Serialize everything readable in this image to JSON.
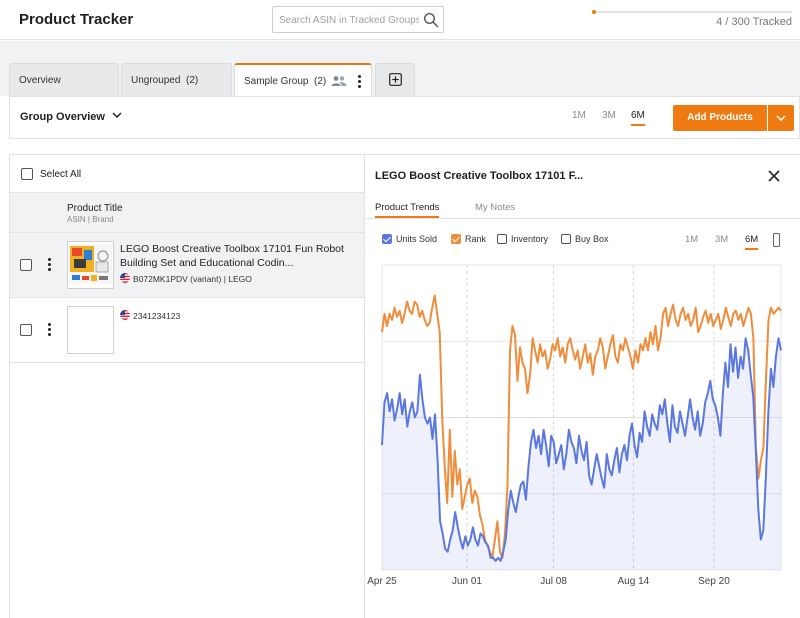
{
  "app": {
    "title": "Product Tracker"
  },
  "search": {
    "placeholder": "Search ASIN in Tracked Groups"
  },
  "quota": {
    "text": "4 / 300 Tracked",
    "used": 4,
    "limit": 300,
    "color": "#f07a12"
  },
  "tabs": [
    {
      "label": "Overview"
    },
    {
      "label": "Ungrouped  (2)"
    },
    {
      "label": "Sample Group  (2)"
    }
  ],
  "tab_icons": {
    "group_users": "users-icon",
    "more": "kebab-icon",
    "add": "plus-box-icon"
  },
  "overview": {
    "title": "Group Overview",
    "ranges": [
      "1M",
      "3M",
      "6M"
    ],
    "active_range": "6M",
    "add_button": "Add Products"
  },
  "list": {
    "select_all": "Select All",
    "header_title": "Product Title",
    "header_sub": "ASIN | Brand",
    "rows": [
      {
        "title": "LEGO Boost Creative Toolbox 17101 Fun Robot Building Set and Educational Codin...",
        "meta": "B072MK1PDV (variant) | LEGO",
        "has_image": true
      },
      {
        "title": "",
        "meta": "2341234123",
        "has_image": false
      }
    ]
  },
  "detail": {
    "title": "LEGO Boost Creative Toolbox 17101 F...",
    "tabs": [
      "Product Trends",
      "My Notes"
    ],
    "active_tab": "Product Trends",
    "legend": [
      {
        "label": "Units Sold",
        "checked": true,
        "color": "#5b78e0"
      },
      {
        "label": "Rank",
        "checked": true,
        "color": "#f08d3c"
      },
      {
        "label": "Inventory",
        "checked": false,
        "color": "#555555"
      },
      {
        "label": "Buy Box",
        "checked": false,
        "color": "#555555"
      }
    ],
    "ranges": [
      "1M",
      "3M",
      "6M"
    ],
    "active_range": "6M"
  },
  "chart_data": {
    "type": "line",
    "x_ticks": [
      "Apr 25",
      "Jun 01",
      "Jul 08",
      "Aug 14",
      "Sep 20"
    ],
    "grid": true,
    "series": [
      {
        "name": "Units Sold",
        "color": "#5b78e0",
        "fill": true,
        "values": [
          0.41,
          0.55,
          0.58,
          0.52,
          0.56,
          0.49,
          0.53,
          0.58,
          0.51,
          0.56,
          0.47,
          0.52,
          0.55,
          0.5,
          0.52,
          0.64,
          0.56,
          0.5,
          0.48,
          0.5,
          0.43,
          0.51,
          0.36,
          0.16,
          0.12,
          0.07,
          0.06,
          0.1,
          0.13,
          0.19,
          0.14,
          0.1,
          0.07,
          0.11,
          0.08,
          0.1,
          0.14,
          0.1,
          0.08,
          0.12,
          0.11,
          0.09,
          0.08,
          0.04,
          0.04,
          0.03,
          0.04,
          0.03,
          0.06,
          0.1,
          0.2,
          0.26,
          0.22,
          0.19,
          0.24,
          0.28,
          0.29,
          0.23,
          0.34,
          0.42,
          0.46,
          0.4,
          0.44,
          0.38,
          0.46,
          0.41,
          0.34,
          0.44,
          0.42,
          0.35,
          0.38,
          0.41,
          0.33,
          0.38,
          0.46,
          0.42,
          0.4,
          0.35,
          0.44,
          0.39,
          0.36,
          0.42,
          0.31,
          0.28,
          0.33,
          0.38,
          0.34,
          0.3,
          0.27,
          0.38,
          0.33,
          0.31,
          0.36,
          0.4,
          0.32,
          0.38,
          0.41,
          0.36,
          0.44,
          0.48,
          0.41,
          0.37,
          0.45,
          0.42,
          0.52,
          0.47,
          0.44,
          0.51,
          0.48,
          0.46,
          0.54,
          0.51,
          0.56,
          0.48,
          0.42,
          0.54,
          0.47,
          0.45,
          0.52,
          0.48,
          0.44,
          0.5,
          0.56,
          0.5,
          0.46,
          0.52,
          0.44,
          0.48,
          0.55,
          0.58,
          0.62,
          0.56,
          0.54,
          0.5,
          0.44,
          0.58,
          0.68,
          0.6,
          0.74,
          0.65,
          0.73,
          0.63,
          0.7,
          0.66,
          0.76,
          0.72,
          0.64,
          0.57,
          0.4,
          0.2,
          0.1,
          0.13,
          0.3,
          0.52,
          0.66,
          0.6,
          0.7,
          0.76,
          0.72
        ]
      },
      {
        "name": "Rank",
        "color": "#f08d3c",
        "fill": false,
        "values": [
          0.78,
          0.84,
          0.8,
          0.84,
          0.82,
          0.86,
          0.83,
          0.85,
          0.81,
          0.84,
          0.88,
          0.85,
          0.84,
          0.88,
          0.87,
          0.83,
          0.85,
          0.82,
          0.8,
          0.81,
          0.86,
          0.9,
          0.84,
          0.78,
          0.5,
          0.34,
          0.22,
          0.46,
          0.24,
          0.39,
          0.28,
          0.33,
          0.2,
          0.24,
          0.28,
          0.3,
          0.22,
          0.26,
          0.24,
          0.18,
          0.15,
          0.1,
          0.08,
          0.06,
          0.04,
          0.1,
          0.16,
          0.06,
          0.04,
          0.12,
          0.28,
          0.72,
          0.8,
          0.77,
          0.62,
          0.73,
          0.68,
          0.66,
          0.58,
          0.64,
          0.76,
          0.72,
          0.68,
          0.74,
          0.7,
          0.72,
          0.66,
          0.69,
          0.74,
          0.72,
          0.76,
          0.7,
          0.73,
          0.68,
          0.74,
          0.76,
          0.72,
          0.69,
          0.72,
          0.66,
          0.7,
          0.74,
          0.68,
          0.71,
          0.64,
          0.7,
          0.72,
          0.76,
          0.73,
          0.66,
          0.7,
          0.74,
          0.77,
          0.7,
          0.68,
          0.74,
          0.72,
          0.76,
          0.73,
          0.7,
          0.66,
          0.72,
          0.68,
          0.74,
          0.72,
          0.76,
          0.72,
          0.78,
          0.74,
          0.8,
          0.72,
          0.76,
          0.84,
          0.86,
          0.8,
          0.84,
          0.87,
          0.82,
          0.8,
          0.84,
          0.86,
          0.82,
          0.84,
          0.8,
          0.82,
          0.86,
          0.78,
          0.8,
          0.83,
          0.85,
          0.81,
          0.84,
          0.8,
          0.82,
          0.84,
          0.79,
          0.82,
          0.86,
          0.83,
          0.8,
          0.84,
          0.85,
          0.82,
          0.84,
          0.8,
          0.83,
          0.86,
          0.84,
          0.76,
          0.4,
          0.3,
          0.36,
          0.4,
          0.62,
          0.82,
          0.86,
          0.84,
          0.85,
          0.86,
          0.85
        ]
      }
    ]
  }
}
